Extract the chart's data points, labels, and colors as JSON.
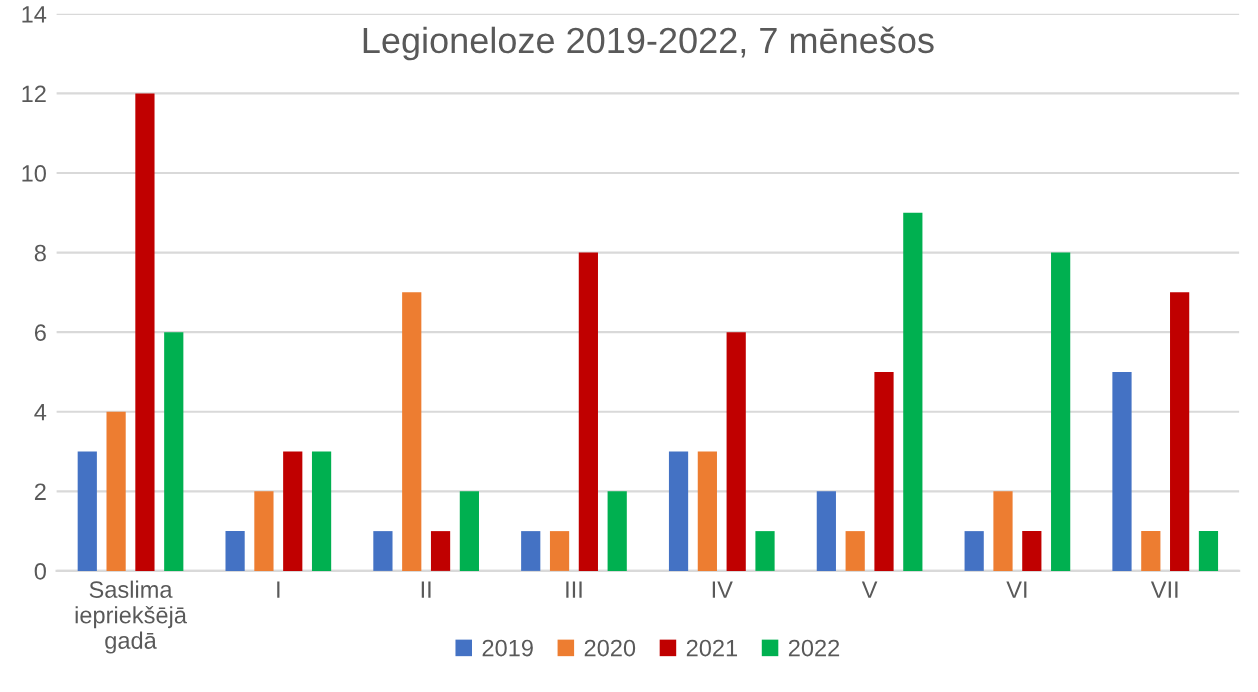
{
  "chart_data": {
    "type": "bar",
    "title": "Legioneloze 2019-2022, 7 mēnešos",
    "categories": [
      "Saslima\niepriekšējā\ngadā",
      "I",
      "II",
      "III",
      "IV",
      "V",
      "VI",
      "VII"
    ],
    "series": [
      {
        "name": "2019",
        "color": "#4472c4",
        "values": [
          3,
          1,
          1,
          1,
          3,
          2,
          1,
          5
        ]
      },
      {
        "name": "2020",
        "color": "#ed7d31",
        "values": [
          4,
          2,
          7,
          1,
          3,
          1,
          2,
          1
        ]
      },
      {
        "name": "2021",
        "color": "#c00000",
        "values": [
          12,
          3,
          1,
          8,
          6,
          5,
          1,
          7
        ]
      },
      {
        "name": "2022",
        "color": "#00b050",
        "values": [
          6,
          3,
          2,
          2,
          1,
          9,
          8,
          1
        ]
      }
    ],
    "ylim": [
      0,
      14
    ],
    "yticks": [
      0,
      2,
      4,
      6,
      8,
      10,
      12,
      14
    ],
    "grid": "y",
    "legend": "bottom"
  }
}
